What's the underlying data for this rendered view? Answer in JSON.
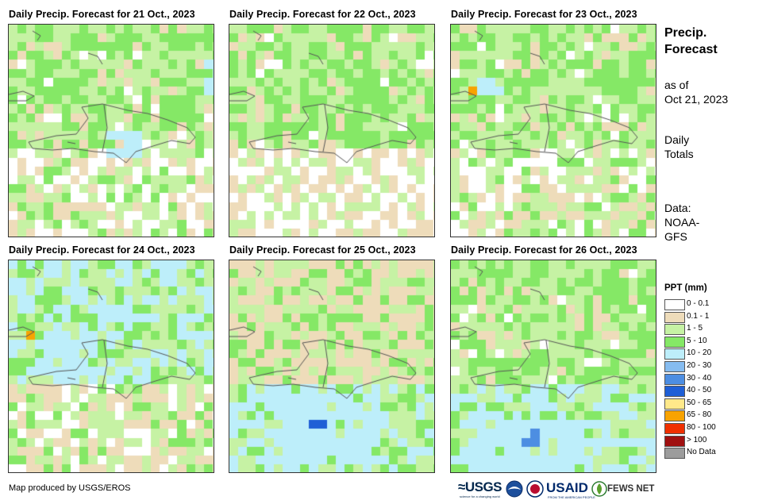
{
  "panels": [
    {
      "title": "Daily Precip. Forecast for 21 Oct., 2023"
    },
    {
      "title": "Daily Precip. Forecast for 22 Oct., 2023"
    },
    {
      "title": "Daily Precip. Forecast for 23 Oct., 2023"
    },
    {
      "title": "Daily Precip. Forecast for 24 Oct., 2023"
    },
    {
      "title": "Daily Precip. Forecast for 25 Oct., 2023"
    },
    {
      "title": "Daily Precip. Forecast for 26 Oct., 2023"
    }
  ],
  "side": {
    "title_line1": "Precip.",
    "title_line2": "Forecast",
    "asof_line1": "as of",
    "asof_line2": "Oct 21, 2023",
    "totals_line1": "Daily",
    "totals_line2": "Totals",
    "data_line1": "Data:",
    "data_line2": "NOAA-",
    "data_line3": "GFS"
  },
  "legend": {
    "title": "PPT (mm)",
    "items": [
      {
        "label": "0 - 0.1",
        "color": "#ffffff"
      },
      {
        "label": "0.1 - 1",
        "color": "#eedcba"
      },
      {
        "label": "1 - 5",
        "color": "#c6f2a4"
      },
      {
        "label": "5 - 10",
        "color": "#85e866"
      },
      {
        "label": "10 - 20",
        "color": "#bdeefa"
      },
      {
        "label": "20 - 30",
        "color": "#86bcf0"
      },
      {
        "label": "30 - 40",
        "color": "#4d8ee2"
      },
      {
        "label": "40 - 50",
        "color": "#1f5fd6"
      },
      {
        "label": "50 - 65",
        "color": "#ffe98a"
      },
      {
        "label": "65 - 80",
        "color": "#f8a300"
      },
      {
        "label": "80 - 100",
        "color": "#f03000"
      },
      {
        "label": "> 100",
        "color": "#a01010"
      },
      {
        "label": "No Data",
        "color": "#9c9c9c"
      }
    ]
  },
  "footer": {
    "credit": "Map produced by USGS/EROS",
    "logo_usgs": "≈USGS",
    "logo_usgs_sub": "science for a changing world",
    "logo_usaid": "USAID",
    "logo_usaid_sub": "FROM THE AMERICAN PEOPLE",
    "logo_fews": "FEWS NET"
  }
}
